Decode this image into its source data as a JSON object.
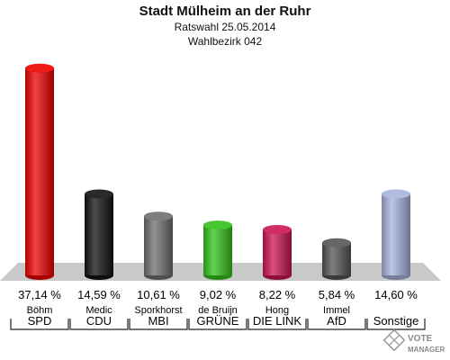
{
  "header": {
    "title": "Stadt Mülheim an der Ruhr",
    "subtitle": "Ratswahl 25.05.2014",
    "district": "Wahlbezirk 042"
  },
  "logo": {
    "line1": "VOTE",
    "line2": "MANAGER"
  },
  "chart_data": {
    "type": "bar",
    "title": "Stadt Mülheim an der Ruhr",
    "subtitle": "Ratswahl 25.05.2014 · Wahlbezirk 042",
    "categories": [
      "SPD",
      "CDU",
      "MBI",
      "GRÜNE",
      "DIE LINKE",
      "AfD",
      "Sonstige"
    ],
    "candidates": [
      "Böhm",
      "Medic",
      "Sporkhorst",
      "de Bruijn",
      "Hong",
      "Immel",
      ""
    ],
    "values": [
      37.14,
      14.59,
      10.61,
      9.02,
      8.22,
      5.84,
      14.6
    ],
    "value_labels": [
      "37,14 %",
      "14,59 %",
      "10,61 %",
      "9,02 %",
      "8,22 %",
      "5,84 %",
      "14,60 %"
    ],
    "party_labels": [
      "SPD",
      "CDU",
      "MBI",
      "GRÜNE",
      "DIE LINK",
      "AfD",
      "Sonstige"
    ],
    "colors": [
      "#ee0000",
      "#111111",
      "#6f6f6f",
      "#33c21b",
      "#cc1650",
      "#555555",
      "#a7b3dd"
    ],
    "ylim": [
      0,
      40
    ],
    "grid": false,
    "legend": "none"
  }
}
